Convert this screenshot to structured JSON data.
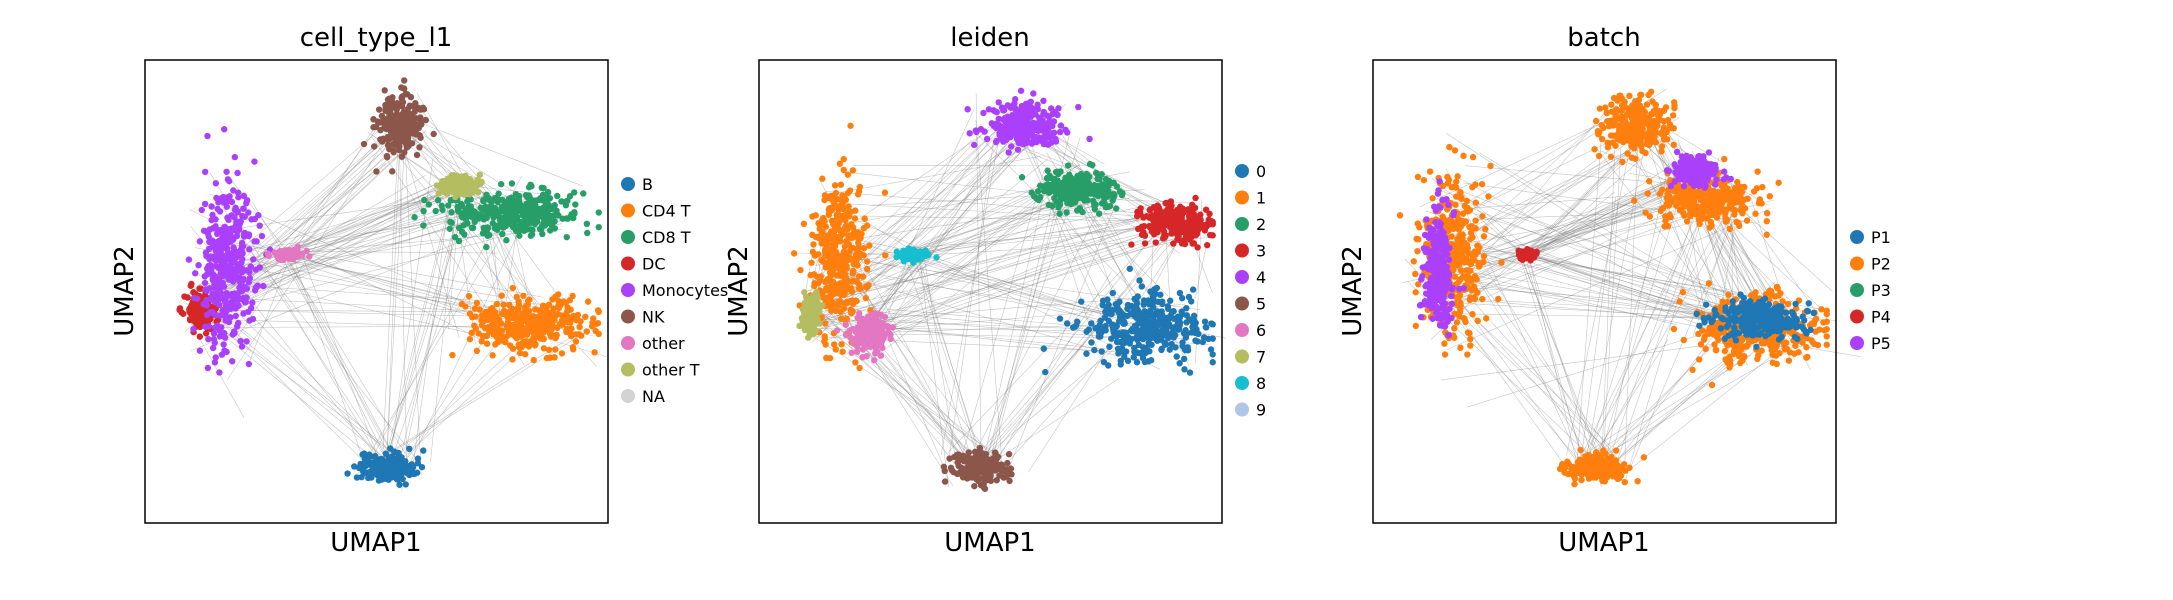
{
  "chart_data": [
    {
      "type": "scatter",
      "title": "cell_type_l1",
      "xlabel": "UMAP1",
      "ylabel": "UMAP2",
      "xticks": [],
      "yticks": [],
      "grid": false,
      "legend_position": "right",
      "overlay": "PAGA graph edges (gray)",
      "legend": [
        {
          "label": "B",
          "color": "#1f77b4"
        },
        {
          "label": "CD4 T",
          "color": "#ff7f0e"
        },
        {
          "label": "CD8 T",
          "color": "#279e68"
        },
        {
          "label": "DC",
          "color": "#d62728"
        },
        {
          "label": "Monocytes",
          "color": "#aa40fc"
        },
        {
          "label": "NK",
          "color": "#8c564b"
        },
        {
          "label": "other",
          "color": "#e377c2"
        },
        {
          "label": "other T",
          "color": "#b5bd61"
        },
        {
          "label": "NA",
          "color": "#d3d3d3"
        }
      ],
      "clusters": [
        {
          "label": "B",
          "x": 0.52,
          "y": 0.12,
          "spread": [
            0.06,
            0.03
          ]
        },
        {
          "label": "CD4 T",
          "x": 0.83,
          "y": 0.43,
          "spread": [
            0.13,
            0.06
          ]
        },
        {
          "label": "CD8 T",
          "x": 0.79,
          "y": 0.67,
          "spread": [
            0.15,
            0.05
          ]
        },
        {
          "label": "DC",
          "x": 0.12,
          "y": 0.46,
          "spread": [
            0.03,
            0.04
          ]
        },
        {
          "label": "Monocytes",
          "x": 0.18,
          "y": 0.55,
          "spread": [
            0.06,
            0.18
          ]
        },
        {
          "label": "NK",
          "x": 0.55,
          "y": 0.86,
          "spread": [
            0.05,
            0.06
          ]
        },
        {
          "label": "other",
          "x": 0.31,
          "y": 0.58,
          "spread": [
            0.03,
            0.01
          ]
        },
        {
          "label": "other T",
          "x": 0.68,
          "y": 0.73,
          "spread": [
            0.04,
            0.02
          ]
        }
      ]
    },
    {
      "type": "scatter",
      "title": "leiden",
      "xlabel": "UMAP1",
      "ylabel": "UMAP2",
      "xticks": [],
      "yticks": [],
      "grid": false,
      "legend_position": "right",
      "overlay": "PAGA graph edges (gray)",
      "legend": [
        {
          "label": "0",
          "color": "#1f77b4"
        },
        {
          "label": "1",
          "color": "#ff7f0e"
        },
        {
          "label": "2",
          "color": "#279e68"
        },
        {
          "label": "3",
          "color": "#d62728"
        },
        {
          "label": "4",
          "color": "#aa40fc"
        },
        {
          "label": "5",
          "color": "#8c564b"
        },
        {
          "label": "6",
          "color": "#e377c2"
        },
        {
          "label": "7",
          "color": "#b5bd61"
        },
        {
          "label": "8",
          "color": "#17becf"
        },
        {
          "label": "9",
          "color": "#aec7e8"
        }
      ],
      "clusters": [
        {
          "label": "0",
          "x": 0.83,
          "y": 0.42,
          "spread": [
            0.13,
            0.07
          ]
        },
        {
          "label": "1",
          "x": 0.17,
          "y": 0.57,
          "spread": [
            0.06,
            0.17
          ]
        },
        {
          "label": "2",
          "x": 0.69,
          "y": 0.72,
          "spread": [
            0.09,
            0.04
          ]
        },
        {
          "label": "3",
          "x": 0.9,
          "y": 0.65,
          "spread": [
            0.08,
            0.04
          ]
        },
        {
          "label": "4",
          "x": 0.57,
          "y": 0.86,
          "spread": [
            0.09,
            0.05
          ]
        },
        {
          "label": "5",
          "x": 0.48,
          "y": 0.12,
          "spread": [
            0.06,
            0.03
          ]
        },
        {
          "label": "6",
          "x": 0.24,
          "y": 0.41,
          "spread": [
            0.04,
            0.04
          ]
        },
        {
          "label": "7",
          "x": 0.11,
          "y": 0.45,
          "spread": [
            0.02,
            0.04
          ]
        },
        {
          "label": "8",
          "x": 0.33,
          "y": 0.58,
          "spread": [
            0.03,
            0.01
          ]
        }
      ]
    },
    {
      "type": "scatter",
      "title": "batch",
      "xlabel": "UMAP1",
      "ylabel": "UMAP2",
      "xticks": [],
      "yticks": [],
      "grid": false,
      "legend_position": "right",
      "overlay": "PAGA graph edges (gray)",
      "legend": [
        {
          "label": "P1",
          "color": "#1f77b4"
        },
        {
          "label": "P2",
          "color": "#ff7f0e"
        },
        {
          "label": "P3",
          "color": "#279e68"
        },
        {
          "label": "P4",
          "color": "#d62728"
        },
        {
          "label": "P5",
          "color": "#aa40fc"
        }
      ],
      "clusters": [
        {
          "label": "P2",
          "x": 0.83,
          "y": 0.42,
          "spread": [
            0.13,
            0.07
          ]
        },
        {
          "label": "P2",
          "x": 0.17,
          "y": 0.57,
          "spread": [
            0.07,
            0.17
          ]
        },
        {
          "label": "P2",
          "x": 0.72,
          "y": 0.7,
          "spread": [
            0.12,
            0.05
          ]
        },
        {
          "label": "P2",
          "x": 0.57,
          "y": 0.86,
          "spread": [
            0.08,
            0.06
          ]
        },
        {
          "label": "P2",
          "x": 0.48,
          "y": 0.12,
          "spread": [
            0.06,
            0.03
          ]
        },
        {
          "label": "P5",
          "x": 0.14,
          "y": 0.55,
          "spread": [
            0.03,
            0.12
          ]
        },
        {
          "label": "P5",
          "x": 0.7,
          "y": 0.76,
          "spread": [
            0.05,
            0.03
          ]
        },
        {
          "label": "P1",
          "x": 0.84,
          "y": 0.44,
          "spread": [
            0.1,
            0.04
          ]
        },
        {
          "label": "P4",
          "x": 0.33,
          "y": 0.58,
          "spread": [
            0.02,
            0.01
          ]
        }
      ]
    }
  ]
}
